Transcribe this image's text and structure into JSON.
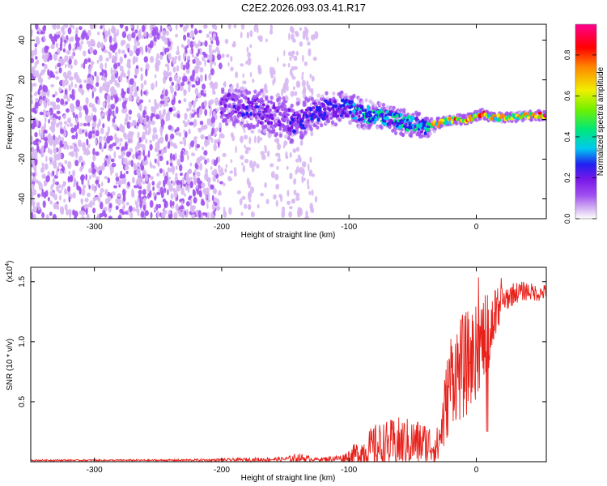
{
  "title": "C2E2.2026.093.03.41.R17",
  "chart_data": [
    {
      "type": "heatmap",
      "title": "C2E2.2026.093.03.41.R17",
      "xlabel": "Height of straight line (km)",
      "ylabel": "Frequency (Hz)",
      "xlim": [
        -350,
        55
      ],
      "ylim": [
        -50,
        48
      ],
      "xticks": [
        -300,
        -200,
        -100,
        0
      ],
      "yticks": [
        -40,
        -20,
        0,
        20,
        40
      ],
      "colorbar": {
        "label": "Normalized spectral amplitude",
        "range": [
          0.0,
          0.95
        ],
        "ticks": [
          0.0,
          0.2,
          0.4,
          0.6,
          0.8
        ],
        "colors": [
          "#ffffff",
          "#d7b8f2",
          "#a050f0",
          "#7a18e8",
          "#2020f0",
          "#00c8f0",
          "#00e878",
          "#70f000",
          "#f0f000",
          "#ff8800",
          "#ff0000",
          "#ff0090"
        ]
      },
      "noise_region_x": [
        -350,
        -125
      ],
      "signal_trace": [
        {
          "x": -240,
          "f": 5,
          "w": 2,
          "a": 0.2
        },
        {
          "x": -195,
          "f": 7,
          "w": 9,
          "a": 0.25
        },
        {
          "x": -185,
          "f": 7,
          "w": 9,
          "a": 0.3
        },
        {
          "x": -170,
          "f": 4,
          "w": 10,
          "a": 0.3
        },
        {
          "x": -160,
          "f": 3,
          "w": 10,
          "a": 0.2
        },
        {
          "x": -150,
          "f": 0,
          "w": 10,
          "a": 0.25
        },
        {
          "x": -140,
          "f": -2,
          "w": 10,
          "a": 0.3
        },
        {
          "x": -130,
          "f": 3,
          "w": 8,
          "a": 0.35
        },
        {
          "x": -115,
          "f": 5,
          "w": 8,
          "a": 0.3
        },
        {
          "x": -100,
          "f": 6,
          "w": 7,
          "a": 0.4
        },
        {
          "x": -90,
          "f": 3,
          "w": 7,
          "a": 0.45
        },
        {
          "x": -80,
          "f": 2,
          "w": 6,
          "a": 0.5
        },
        {
          "x": -70,
          "f": 1,
          "w": 6,
          "a": 0.45
        },
        {
          "x": -60,
          "f": -1,
          "w": 6,
          "a": 0.5
        },
        {
          "x": -50,
          "f": -2,
          "w": 6,
          "a": 0.45
        },
        {
          "x": -40,
          "f": -4,
          "w": 5,
          "a": 0.4
        },
        {
          "x": -33,
          "f": -3,
          "w": 3,
          "a": 0.8
        },
        {
          "x": -25,
          "f": -1,
          "w": 2,
          "a": 0.75
        },
        {
          "x": -15,
          "f": 0,
          "w": 2,
          "a": 0.8
        },
        {
          "x": -8,
          "f": 0,
          "w": 2,
          "a": 0.85
        },
        {
          "x": 0,
          "f": 2,
          "w": 2,
          "a": 0.7
        },
        {
          "x": 5,
          "f": 3,
          "w": 2,
          "a": 0.8
        },
        {
          "x": 10,
          "f": 1,
          "w": 2,
          "a": 0.75
        },
        {
          "x": 20,
          "f": 1,
          "w": 2,
          "a": 0.7
        },
        {
          "x": 30,
          "f": 1,
          "w": 2,
          "a": 0.7
        },
        {
          "x": 40,
          "f": 2,
          "w": 2,
          "a": 0.75
        },
        {
          "x": 50,
          "f": 2,
          "w": 2,
          "a": 0.8
        }
      ]
    },
    {
      "type": "line",
      "xlabel": "Height of straight line (km)",
      "ylabel": "SNR (10 * v/v)",
      "yscale_label": "(x10",
      "yscale_exponent": "4",
      "yscale_suffix": ")",
      "xlim": [
        -350,
        55
      ],
      "ylim": [
        0,
        1.62
      ],
      "xticks": [
        -300,
        -200,
        -100,
        0
      ],
      "yticks": [
        0.5,
        1.0,
        1.5
      ],
      "ytick_labels": [
        "0.5",
        "1.0",
        "1.5"
      ],
      "color": "#e8201a",
      "envelope": [
        {
          "x": -350,
          "base": 0.01,
          "amp": 0.01
        },
        {
          "x": -250,
          "base": 0.01,
          "amp": 0.01
        },
        {
          "x": -200,
          "base": 0.01,
          "amp": 0.02
        },
        {
          "x": -150,
          "base": 0.015,
          "amp": 0.03
        },
        {
          "x": -140,
          "base": 0.02,
          "amp": 0.06
        },
        {
          "x": -125,
          "base": 0.015,
          "amp": 0.02
        },
        {
          "x": -105,
          "base": 0.02,
          "amp": 0.05
        },
        {
          "x": -95,
          "base": 0.03,
          "amp": 0.15
        },
        {
          "x": -80,
          "base": 0.06,
          "amp": 0.3
        },
        {
          "x": -60,
          "base": 0.08,
          "amp": 0.35
        },
        {
          "x": -45,
          "base": 0.1,
          "amp": 0.3
        },
        {
          "x": -30,
          "base": 0.08,
          "amp": 0.25
        },
        {
          "x": -25,
          "base": 0.3,
          "amp": 0.5
        },
        {
          "x": -20,
          "base": 0.6,
          "amp": 0.6
        },
        {
          "x": -10,
          "base": 0.65,
          "amp": 0.7
        },
        {
          "x": 0,
          "base": 0.8,
          "amp": 0.6
        },
        {
          "x": 10,
          "base": 1.0,
          "amp": 0.5
        },
        {
          "x": 20,
          "base": 1.3,
          "amp": 0.2
        },
        {
          "x": 30,
          "base": 1.38,
          "amp": 0.14
        },
        {
          "x": 40,
          "base": 1.4,
          "amp": 0.12
        },
        {
          "x": 50,
          "base": 1.38,
          "amp": 0.1
        },
        {
          "x": 55,
          "base": 1.4,
          "amp": 0.1
        }
      ]
    }
  ]
}
